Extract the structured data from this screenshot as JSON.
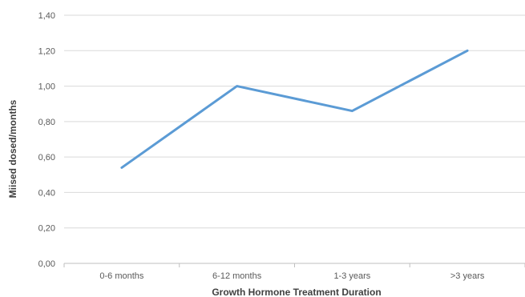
{
  "chart_data": {
    "type": "line",
    "title": "",
    "xlabel": "Growth Hormone Treatment Duration",
    "ylabel": "Miised dosed/months",
    "categories": [
      "0-6 months",
      "6-12 months",
      "1-3 years",
      ">3 years"
    ],
    "y_tick_labels": [
      "0,00",
      "0,20",
      "0,40",
      "0,60",
      "0,80",
      "1,00",
      "1,20",
      "1,40"
    ],
    "ylim": [
      0,
      1.4
    ],
    "grid": true,
    "legend": "none",
    "series": [
      {
        "values": [
          0.54,
          1.0,
          0.86,
          1.2
        ]
      }
    ],
    "colors": {
      "line": "#5b9bd5",
      "grid": "#d9d9d9",
      "axis": "#bfbfbf"
    }
  }
}
